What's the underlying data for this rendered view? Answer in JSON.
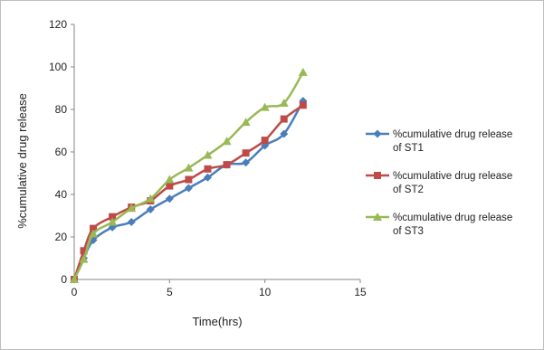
{
  "chart_data": {
    "type": "line",
    "xlabel": "Time(hrs)",
    "ylabel": "%cumulative drug release",
    "xlim": [
      0,
      15
    ],
    "ylim": [
      0,
      120
    ],
    "xticks": [
      0,
      5,
      10,
      15
    ],
    "yticks": [
      0,
      20,
      40,
      60,
      80,
      100,
      120
    ],
    "grid": false,
    "legend": "right",
    "series": [
      {
        "name_lines": [
          "%cumulative drug release",
          "of ST1"
        ],
        "color": "#4a7ebb",
        "marker": "diamond",
        "x": [
          0,
          0.5,
          1,
          2,
          3,
          4,
          5,
          6,
          7,
          8,
          9,
          10,
          11,
          12
        ],
        "y": [
          0,
          10,
          18.5,
          24.5,
          27,
          33,
          38,
          43,
          48,
          54,
          55,
          63,
          68.5,
          84
        ]
      },
      {
        "name_lines": [
          "%cumulative drug release",
          "of ST2"
        ],
        "color": "#be4b48",
        "marker": "square",
        "x": [
          0,
          0.5,
          1,
          2,
          3,
          4,
          5,
          6,
          7,
          8,
          9,
          10,
          11,
          12
        ],
        "y": [
          0,
          13.5,
          24,
          29.5,
          34,
          37,
          44,
          47,
          52,
          54,
          59.5,
          65.5,
          75.5,
          82
        ]
      },
      {
        "name_lines": [
          "%cumulative drug release",
          "of ST3"
        ],
        "color": "#98b954",
        "marker": "triangle",
        "x": [
          0,
          0.5,
          1,
          2,
          3,
          4,
          5,
          6,
          7,
          8,
          9,
          10,
          11,
          12
        ],
        "y": [
          0,
          9.5,
          21.5,
          27,
          33.5,
          38,
          47,
          52.5,
          58.5,
          65,
          74,
          81,
          83,
          97.5
        ]
      }
    ]
  }
}
